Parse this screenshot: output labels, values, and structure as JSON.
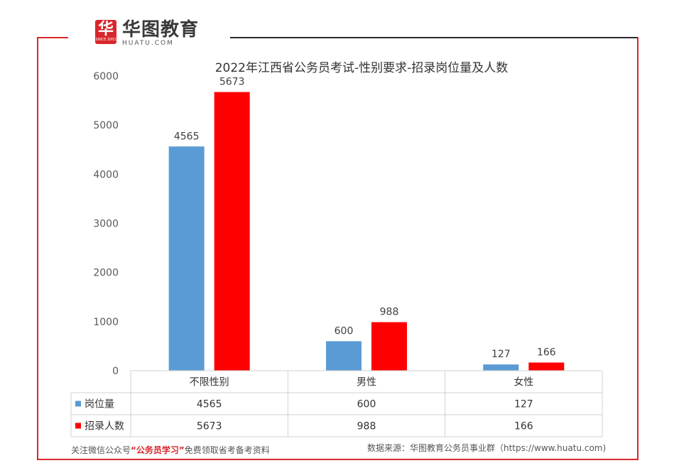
{
  "brand": {
    "name_cn": "华图教育",
    "name_en": "HUATU.COM",
    "since": "SINCE 2001",
    "mark_glyph": "华",
    "color": "#d9262c"
  },
  "chart_data": {
    "type": "bar",
    "title": "2022年江西省公务员考试-性别要求-招录岗位量及人数",
    "categories": [
      "不限性别",
      "男性",
      "女性"
    ],
    "series": [
      {
        "name": "岗位量",
        "values": [
          4565,
          600,
          127
        ],
        "color": "#5b9bd5"
      },
      {
        "name": "招录人数",
        "values": [
          5673,
          988,
          166
        ],
        "color": "#ff0000"
      }
    ],
    "ylim": [
      0,
      6000
    ],
    "yticks": [
      0,
      1000,
      2000,
      3000,
      4000,
      5000,
      6000
    ],
    "xlabel": "",
    "ylabel": "",
    "grid": false,
    "data_table": true
  },
  "footer": {
    "left_prefix": "关注微信公众号",
    "left_highlight": "“公务员学习”",
    "left_suffix": "免费领取省考备考资料",
    "right": "数据来源：华图教育公务员事业群（https://www.huatu.com)"
  }
}
